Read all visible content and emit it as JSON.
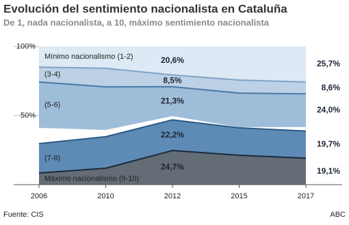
{
  "chart_data": {
    "type": "stacked-area",
    "title": "Evolución del sentimiento nacionalista en Cataluña",
    "subtitle": "De 1, nada nacionalista, a 10, máximo sentimiento nacionalista",
    "source": "Fuente: CIS",
    "credit": "ABC",
    "categories": [
      "2006",
      "2010",
      "2012",
      "2015",
      "2017"
    ],
    "ylim": [
      0,
      100
    ],
    "yticks": [
      {
        "value": 50,
        "label": "50%"
      },
      {
        "value": 100,
        "label": "100%"
      }
    ],
    "series": [
      {
        "name": "Mínimo nacionalismo (1-2)",
        "stack": "top",
        "color": "#dde9f4",
        "values": [
          14.9,
          15.8,
          20.6,
          24.3,
          25.7
        ],
        "value_labels": [
          null,
          null,
          "20,6%",
          null,
          "25,7%"
        ]
      },
      {
        "name": "(3-4)",
        "stack": "top",
        "color": "#bcd1e5",
        "line": "#7fa3c6",
        "values": [
          10.8,
          13.4,
          8.5,
          9.4,
          8.6
        ],
        "value_labels": [
          null,
          null,
          "8,5%",
          null,
          "8,6%"
        ]
      },
      {
        "name": "(5-6)",
        "stack": "top",
        "color": "#9ebdd9",
        "line": "#4a79a4",
        "values": [
          33.2,
          31.2,
          21.3,
          24.7,
          24.0
        ],
        "value_labels": [
          null,
          null,
          "21,3%",
          null,
          "24,0%"
        ]
      },
      {
        "name": "(7-8)",
        "stack": "bottom",
        "color": "#5e8bb5",
        "line": "#2a5884",
        "values": [
          21.3,
          22.8,
          22.2,
          19.8,
          19.7
        ],
        "value_labels": [
          null,
          null,
          "22,2%",
          null,
          "19,7%"
        ]
      },
      {
        "name": "Máximo nacionalismo (9-10)",
        "stack": "bottom",
        "color": "#646c75",
        "line": "#1b2a3d",
        "values": [
          8.4,
          11.9,
          24.7,
          21.3,
          19.1
        ],
        "value_labels": [
          null,
          null,
          "24,7%",
          null,
          "19,1%"
        ]
      }
    ]
  }
}
